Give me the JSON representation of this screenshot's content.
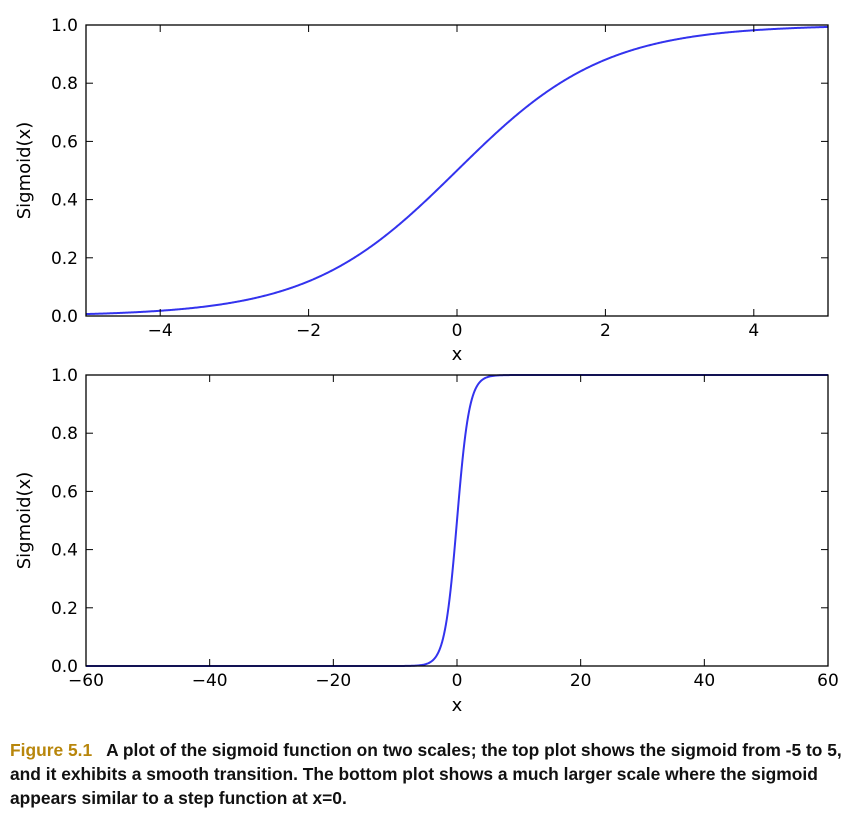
{
  "chart_data": [
    {
      "type": "line",
      "function": "sigmoid",
      "x": [
        -5,
        -4.5,
        -4,
        -3.5,
        -3,
        -2.5,
        -2,
        -1.5,
        -1,
        -0.5,
        0,
        0.5,
        1,
        1.5,
        2,
        2.5,
        3,
        3.5,
        4,
        4.5,
        5
      ],
      "y": [
        0.0067,
        0.011,
        0.018,
        0.0293,
        0.0474,
        0.0759,
        0.1192,
        0.1824,
        0.2689,
        0.3775,
        0.5,
        0.6225,
        0.7311,
        0.8176,
        0.8808,
        0.9241,
        0.9526,
        0.9707,
        0.982,
        0.989,
        0.9933
      ],
      "xlabel": "x",
      "ylabel": "Sigmoid(x)",
      "xlim": [
        -5,
        5
      ],
      "ylim": [
        0,
        1
      ],
      "xticks": [
        -4,
        -2,
        0,
        2,
        4
      ],
      "yticks": [
        0.0,
        0.2,
        0.4,
        0.6,
        0.8,
        1.0
      ],
      "xtick_labels": [
        "−4",
        "−2",
        "0",
        "2",
        "4"
      ],
      "ytick_labels": [
        "0.0",
        "0.2",
        "0.4",
        "0.6",
        "0.8",
        "1.0"
      ],
      "line_color": "#3333ee",
      "grid": false
    },
    {
      "type": "line",
      "function": "sigmoid",
      "x": [
        -60,
        -10,
        -6,
        -5,
        -4,
        -3,
        -2,
        -1,
        0,
        1,
        2,
        3,
        4,
        5,
        6,
        10,
        60
      ],
      "y": [
        0,
        4.54e-05,
        0.0025,
        0.0067,
        0.018,
        0.0474,
        0.1192,
        0.2689,
        0.5,
        0.7311,
        0.8808,
        0.9526,
        0.982,
        0.9933,
        0.9975,
        0.99995,
        1
      ],
      "xlabel": "x",
      "ylabel": "Sigmoid(x)",
      "xlim": [
        -60,
        60
      ],
      "ylim": [
        0,
        1
      ],
      "xticks": [
        -60,
        -40,
        -20,
        0,
        20,
        40,
        60
      ],
      "yticks": [
        0.0,
        0.2,
        0.4,
        0.6,
        0.8,
        1.0
      ],
      "xtick_labels": [
        "−60",
        "−40",
        "−20",
        "0",
        "20",
        "40",
        "60"
      ],
      "ytick_labels": [
        "0.0",
        "0.2",
        "0.4",
        "0.6",
        "0.8",
        "1.0"
      ],
      "line_color": "#3333ee",
      "grid": false
    }
  ],
  "caption": {
    "label": "Figure 5.1",
    "text": "A plot of the sigmoid function on two scales; the top plot shows the sigmoid from -5 to 5, and it exhibits a smooth transition. The bottom plot shows a much larger scale where the sigmoid appears similar to a step function at x=0."
  },
  "colors": {
    "caption_label": "#b8860b",
    "line": "#3333ee"
  }
}
